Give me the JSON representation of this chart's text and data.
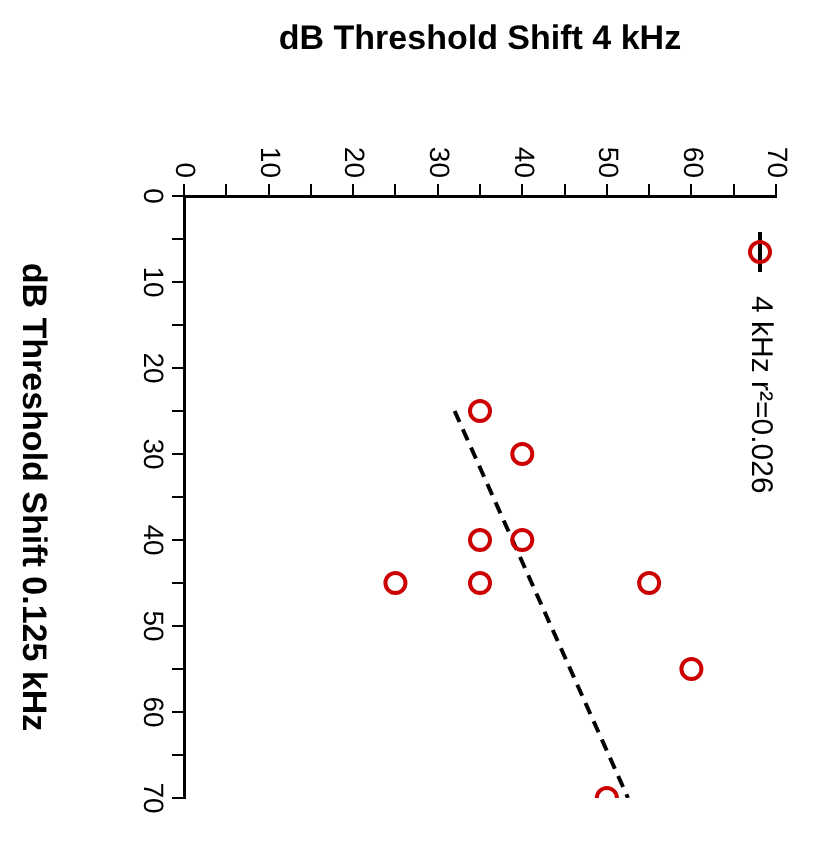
{
  "chart_data": {
    "type": "scatter",
    "xlabel": "dB Threshold Shift 4 kHz",
    "ylabel": "dB Threshold Shift 0.125 kHz",
    "x": [
      35,
      40,
      35,
      40,
      25,
      35,
      55,
      60,
      50
    ],
    "series": [
      {
        "name": "4 kHz r²=0.026",
        "color": "#cc0000",
        "values": [
          25,
          30,
          40,
          40,
          45,
          45,
          45,
          55,
          70
        ],
        "marker": "circle"
      },
      {
        "type": "line",
        "color": "#000000",
        "x": [
          32,
          52.5
        ],
        "values": [
          25,
          70
        ],
        "marker": "none",
        "line_style": "dashed"
      }
    ],
    "xlim": [
      0,
      70
    ],
    "ylim": [
      70,
      0
    ],
    "xticks": [
      0,
      {
        "value": 5,
        "label": null
      },
      10,
      {
        "value": 15,
        "label": null
      },
      20,
      {
        "value": 25,
        "label": null
      },
      30,
      {
        "value": 35,
        "label": null
      },
      40,
      {
        "value": 45,
        "label": null
      },
      50,
      {
        "value": 55,
        "label": null
      },
      60,
      {
        "value": 65,
        "label": null
      },
      70
    ],
    "yticks": [
      0,
      {
        "value": 5,
        "label": null
      },
      10,
      {
        "value": 15,
        "label": null
      },
      20,
      {
        "value": 25,
        "label": null
      },
      30,
      {
        "value": 35,
        "label": null
      },
      40,
      {
        "value": 45,
        "label": null
      },
      50,
      {
        "value": 55,
        "label": null
      },
      60,
      {
        "value": 65,
        "label": null
      },
      70
    ],
    "grid": false,
    "legend": "top right"
  }
}
